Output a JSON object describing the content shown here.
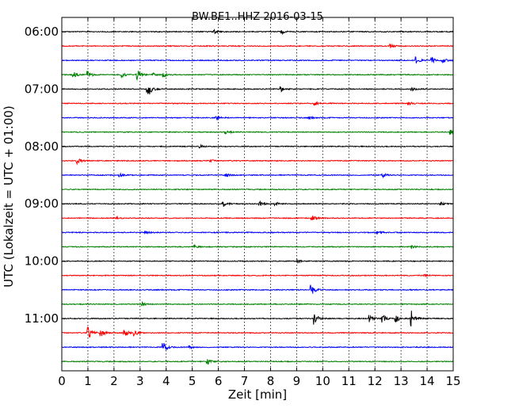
{
  "chart_data": {
    "type": "line",
    "title": "BW.BE1..HHZ 2016-03-15",
    "xlabel": "Zeit  [min]",
    "ylabel": "UTC (Lokalzeit = UTC + 01:00)",
    "xlim": [
      0,
      15
    ],
    "x_ticks": [
      "0",
      "1",
      "2",
      "3",
      "4",
      "5",
      "6",
      "7",
      "8",
      "9",
      "10",
      "11",
      "12",
      "13",
      "14",
      "15"
    ],
    "y_ticks": [
      "06:00",
      "07:00",
      "08:00",
      "09:00",
      "10:00",
      "11:00"
    ],
    "trace_interval_min": 15,
    "grid": "vertical-dotted",
    "colors": [
      "#000000",
      "#ff0000",
      "#0000ff",
      "#008000"
    ],
    "traces": [
      {
        "start": "06:00",
        "events": [
          {
            "t": 5.85,
            "amp": 4
          },
          {
            "t": 8.45,
            "amp": 4
          }
        ]
      },
      {
        "start": "06:15",
        "events": [
          {
            "t": 12.6,
            "amp": 4
          }
        ]
      },
      {
        "start": "06:30",
        "events": [
          {
            "t": 13.6,
            "amp": 8
          },
          {
            "t": 14.2,
            "amp": 6
          },
          {
            "t": 14.6,
            "amp": 6
          }
        ]
      },
      {
        "start": "06:45",
        "events": [
          {
            "t": 0.45,
            "amp": 7
          },
          {
            "t": 1.0,
            "amp": 9
          },
          {
            "t": 2.3,
            "amp": 6
          },
          {
            "t": 2.9,
            "amp": 12
          },
          {
            "t": 3.5,
            "amp": 5
          },
          {
            "t": 3.9,
            "amp": 6
          }
        ]
      },
      {
        "start": "07:00",
        "events": [
          {
            "t": 3.3,
            "amp": 22
          },
          {
            "t": 8.4,
            "amp": 6
          },
          {
            "t": 13.4,
            "amp": 6
          }
        ]
      },
      {
        "start": "07:15",
        "events": [
          {
            "t": 9.7,
            "amp": 4
          },
          {
            "t": 13.3,
            "amp": 4
          }
        ]
      },
      {
        "start": "07:30",
        "events": [
          {
            "t": 5.95,
            "amp": 4
          },
          {
            "t": 9.5,
            "amp": 3
          }
        ]
      },
      {
        "start": "07:45",
        "events": [
          {
            "t": 6.3,
            "amp": 4
          },
          {
            "t": 14.9,
            "amp": 6
          }
        ]
      },
      {
        "start": "08:00",
        "events": [
          {
            "t": 5.3,
            "amp": 4
          }
        ]
      },
      {
        "start": "08:15",
        "events": [
          {
            "t": 0.6,
            "amp": 9
          },
          {
            "t": 5.7,
            "amp": 3
          }
        ]
      },
      {
        "start": "08:30",
        "events": [
          {
            "t": 2.2,
            "amp": 4
          },
          {
            "t": 6.3,
            "amp": 4
          },
          {
            "t": 12.3,
            "amp": 5
          }
        ]
      },
      {
        "start": "08:45",
        "events": []
      },
      {
        "start": "09:00",
        "events": [
          {
            "t": 6.2,
            "amp": 7
          },
          {
            "t": 7.6,
            "amp": 5
          },
          {
            "t": 8.2,
            "amp": 4
          },
          {
            "t": 14.5,
            "amp": 4
          }
        ]
      },
      {
        "start": "09:15",
        "events": [
          {
            "t": 9.6,
            "amp": 6
          },
          {
            "t": 2.1,
            "amp": 3
          }
        ]
      },
      {
        "start": "09:30",
        "events": [
          {
            "t": 3.2,
            "amp": 4
          },
          {
            "t": 12.1,
            "amp": 4
          }
        ]
      },
      {
        "start": "09:45",
        "events": [
          {
            "t": 5.1,
            "amp": 4
          },
          {
            "t": 13.4,
            "amp": 4
          }
        ]
      },
      {
        "start": "10:00",
        "events": [
          {
            "t": 9.05,
            "amp": 4
          }
        ]
      },
      {
        "start": "10:15",
        "events": [
          {
            "t": 13.9,
            "amp": 3
          }
        ]
      },
      {
        "start": "10:30",
        "events": [
          {
            "t": 9.55,
            "amp": 15
          }
        ]
      },
      {
        "start": "10:45",
        "events": [
          {
            "t": 3.1,
            "amp": 4
          }
        ]
      },
      {
        "start": "11:00",
        "events": [
          {
            "t": 9.7,
            "amp": 15
          },
          {
            "t": 11.8,
            "amp": 8
          },
          {
            "t": 12.3,
            "amp": 9
          },
          {
            "t": 12.8,
            "amp": 10
          },
          {
            "t": 13.4,
            "amp": 22
          }
        ]
      },
      {
        "start": "11:15",
        "events": [
          {
            "t": 1.0,
            "amp": 16
          },
          {
            "t": 1.5,
            "amp": 10
          },
          {
            "t": 2.4,
            "amp": 9
          },
          {
            "t": 2.8,
            "amp": 7
          }
        ]
      },
      {
        "start": "11:30",
        "events": [
          {
            "t": 3.9,
            "amp": 13
          },
          {
            "t": 4.9,
            "amp": 4
          }
        ]
      },
      {
        "start": "11:45",
        "events": [
          {
            "t": 5.6,
            "amp": 7
          }
        ]
      }
    ]
  }
}
